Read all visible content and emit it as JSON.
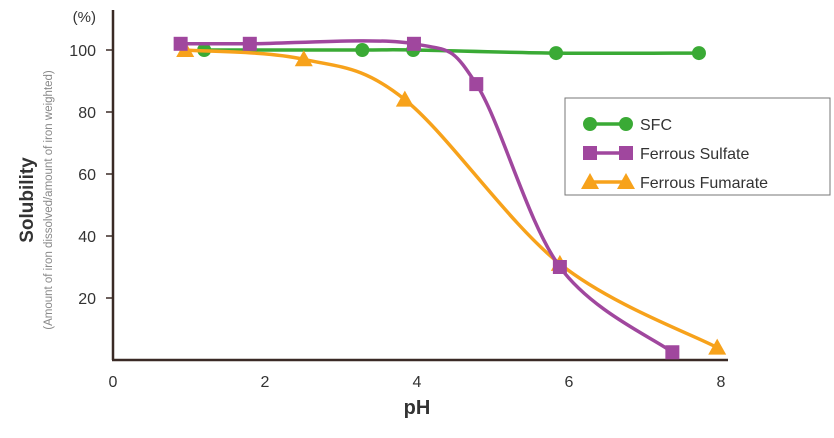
{
  "chart_data": {
    "type": "line",
    "title": "",
    "xlabel": "pH",
    "ylabel": "Solubility",
    "ylabel_sub": "(Amount of iron dissolved/amount of iron weighted)",
    "y_unit": "(%)",
    "xlim": [
      0,
      8
    ],
    "ylim": [
      0,
      100
    ],
    "x_ticks": [
      "0",
      "2",
      "4",
      "6",
      "8"
    ],
    "y_ticks": [
      "20",
      "40",
      "60",
      "80",
      "100"
    ],
    "grid": false,
    "legend_position": "right",
    "series": [
      {
        "name": "SFC",
        "color": "#3aaa35",
        "marker": "circle",
        "x": [
          1.2,
          3.28,
          3.95,
          5.83,
          7.71
        ],
        "y": [
          100,
          100,
          100,
          99,
          99
        ]
      },
      {
        "name": "Ferrous Sulfate",
        "color": "#a0479e",
        "marker": "square",
        "x": [
          0.89,
          1.8,
          3.96,
          4.78,
          5.88,
          7.36
        ],
        "y": [
          102,
          102,
          102,
          89,
          30,
          2.5
        ]
      },
      {
        "name": "Ferrous Fumarate",
        "color": "#f7a21b",
        "marker": "triangle",
        "x": [
          0.95,
          2.51,
          3.84,
          5.88,
          7.95
        ],
        "y": [
          100,
          97,
          84,
          31,
          4
        ]
      }
    ]
  }
}
